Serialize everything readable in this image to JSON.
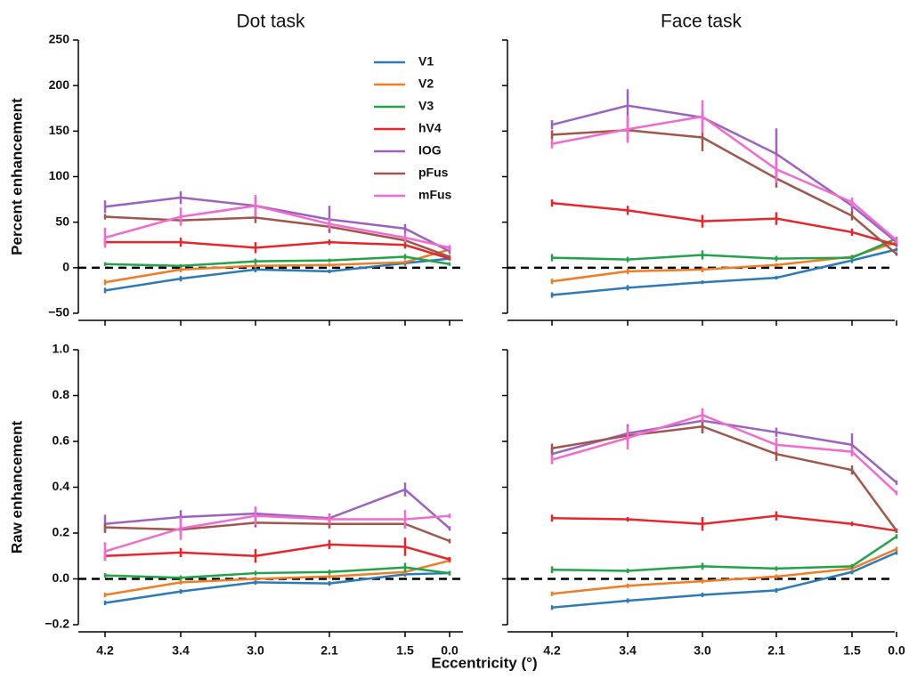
{
  "x_label": "Eccentricity (°)",
  "chart_data": [
    {
      "type": "line",
      "title": "Dot task",
      "y_label": "Percent enhancement",
      "categories": [
        "4.2",
        "3.4",
        "3.0",
        "2.1",
        "1.5",
        "0.0"
      ],
      "xtick_labels": false,
      "ytick_labels": true,
      "ylim": [
        -50,
        250
      ],
      "yticks": [
        {
          "value": -50,
          "label": "−50"
        },
        0,
        50,
        100,
        150,
        200,
        250
      ],
      "zero_line": true,
      "legend": "upper right",
      "series": [
        {
          "name": "V1",
          "color": "#2b7bba",
          "values": [
            -25,
            -12,
            -2,
            -4,
            5,
            10
          ],
          "errors": [
            3,
            3,
            3,
            2,
            3,
            2
          ]
        },
        {
          "name": "V2",
          "color": "#f07c24",
          "values": [
            -16,
            -2,
            2,
            3,
            6,
            20
          ],
          "errors": [
            3,
            3,
            2,
            2,
            2,
            2
          ]
        },
        {
          "name": "V3",
          "color": "#22a34a",
          "values": [
            4,
            2,
            7,
            8,
            12,
            4
          ],
          "errors": [
            2,
            2,
            3,
            2,
            3,
            2
          ]
        },
        {
          "name": "hV4",
          "color": "#e8252a",
          "values": [
            28,
            28,
            22,
            28,
            25,
            10
          ],
          "errors": [
            4,
            5,
            6,
            3,
            4,
            2
          ]
        },
        {
          "name": "IOG",
          "color": "#9d62c0",
          "values": [
            67,
            77,
            68,
            53,
            43,
            18
          ],
          "errors": [
            7,
            7,
            10,
            15,
            5,
            3
          ]
        },
        {
          "name": "pFus",
          "color": "#a0564b",
          "values": [
            56,
            52,
            55,
            45,
            30,
            12
          ],
          "errors": [
            3,
            4,
            6,
            5,
            4,
            2
          ]
        },
        {
          "name": "mFus",
          "color": "#f06ad0",
          "values": [
            33,
            56,
            68,
            48,
            33,
            22
          ],
          "errors": [
            11,
            10,
            12,
            6,
            5,
            3
          ]
        }
      ]
    },
    {
      "type": "line",
      "title": "Face task",
      "categories": [
        "4.2",
        "3.4",
        "3.0",
        "2.1",
        "1.5",
        "0.0"
      ],
      "xtick_labels": false,
      "ytick_labels": false,
      "ylim": [
        -50,
        250
      ],
      "yticks": [
        -50,
        0,
        50,
        100,
        150,
        200,
        250
      ],
      "zero_line": true,
      "series": [
        {
          "name": "V1",
          "color": "#2b7bba",
          "values": [
            -30,
            -22,
            -16,
            -11,
            8,
            20
          ],
          "errors": [
            3,
            3,
            2,
            2,
            3,
            2
          ]
        },
        {
          "name": "V2",
          "color": "#f07c24",
          "values": [
            -15,
            -4,
            -2,
            3,
            12,
            28
          ],
          "errors": [
            3,
            3,
            3,
            2,
            2,
            2
          ]
        },
        {
          "name": "V3",
          "color": "#22a34a",
          "values": [
            11,
            9,
            14,
            10,
            11,
            32
          ],
          "errors": [
            4,
            3,
            5,
            3,
            3,
            2
          ]
        },
        {
          "name": "hV4",
          "color": "#e8252a",
          "values": [
            71,
            63,
            51,
            54,
            39,
            25
          ],
          "errors": [
            4,
            5,
            7,
            7,
            4,
            2
          ]
        },
        {
          "name": "IOG",
          "color": "#9d62c0",
          "values": [
            157,
            178,
            165,
            125,
            68,
            28
          ],
          "errors": [
            5,
            18,
            8,
            28,
            8,
            3
          ]
        },
        {
          "name": "pFus",
          "color": "#a0564b",
          "values": [
            146,
            151,
            143,
            98,
            57,
            15
          ],
          "errors": [
            5,
            12,
            15,
            10,
            5,
            2
          ]
        },
        {
          "name": "mFus",
          "color": "#f06ad0",
          "values": [
            136,
            152,
            166,
            108,
            72,
            30
          ],
          "errors": [
            5,
            15,
            18,
            15,
            5,
            3
          ]
        }
      ]
    },
    {
      "type": "line",
      "y_label": "Raw enhancement",
      "categories": [
        "4.2",
        "3.4",
        "3.0",
        "2.1",
        "1.5",
        "0.0"
      ],
      "xtick_labels": true,
      "ytick_labels": true,
      "ylim": [
        -0.2,
        1.0
      ],
      "yticks": [
        {
          "value": -0.2,
          "label": "−0.2"
        },
        {
          "value": 0,
          "label": "0.0"
        },
        0.2,
        0.4,
        0.6,
        0.8,
        {
          "value": 1.0,
          "label": "1.0"
        }
      ],
      "zero_line": true,
      "series": [
        {
          "name": "V1",
          "color": "#2b7bba",
          "values": [
            -0.105,
            -0.055,
            -0.015,
            -0.02,
            0.02,
            0.025
          ],
          "errors": [
            0.01,
            0.01,
            0.01,
            0.01,
            0.01,
            0.01
          ]
        },
        {
          "name": "V2",
          "color": "#f07c24",
          "values": [
            -0.07,
            -0.015,
            0.0,
            0.01,
            0.03,
            0.08
          ],
          "errors": [
            0.01,
            0.01,
            0.01,
            0.01,
            0.01,
            0.01
          ]
        },
        {
          "name": "V3",
          "color": "#22a34a",
          "values": [
            0.015,
            0.005,
            0.025,
            0.03,
            0.05,
            0.025
          ],
          "errors": [
            0.01,
            0.01,
            0.01,
            0.01,
            0.02,
            0.01
          ]
        },
        {
          "name": "hV4",
          "color": "#e8252a",
          "values": [
            0.1,
            0.115,
            0.1,
            0.15,
            0.14,
            0.085
          ],
          "errors": [
            0.02,
            0.02,
            0.03,
            0.02,
            0.04,
            0.01
          ]
        },
        {
          "name": "IOG",
          "color": "#9d62c0",
          "values": [
            0.24,
            0.27,
            0.285,
            0.265,
            0.39,
            0.22
          ],
          "errors": [
            0.04,
            0.03,
            0.03,
            0.02,
            0.03,
            0.01
          ]
        },
        {
          "name": "pFus",
          "color": "#a0564b",
          "values": [
            0.225,
            0.215,
            0.245,
            0.24,
            0.24,
            0.165
          ],
          "errors": [
            0.02,
            0.02,
            0.02,
            0.02,
            0.02,
            0.01
          ]
        },
        {
          "name": "mFus",
          "color": "#f06ad0",
          "values": [
            0.12,
            0.22,
            0.275,
            0.26,
            0.26,
            0.275
          ],
          "errors": [
            0.04,
            0.05,
            0.04,
            0.02,
            0.04,
            0.01
          ]
        }
      ]
    },
    {
      "type": "line",
      "categories": [
        "4.2",
        "3.4",
        "3.0",
        "2.1",
        "1.5",
        "0.0"
      ],
      "xtick_labels": true,
      "ytick_labels": false,
      "ylim": [
        -0.2,
        1.0
      ],
      "yticks": [
        -0.2,
        0,
        0.2,
        0.4,
        0.6,
        0.8,
        1.0
      ],
      "zero_line": true,
      "series": [
        {
          "name": "V1",
          "color": "#2b7bba",
          "values": [
            -0.125,
            -0.095,
            -0.07,
            -0.05,
            0.03,
            0.115
          ],
          "errors": [
            0.01,
            0.01,
            0.01,
            0.01,
            0.01,
            0.01
          ]
        },
        {
          "name": "V2",
          "color": "#f07c24",
          "values": [
            -0.065,
            -0.03,
            -0.01,
            0.01,
            0.045,
            0.13
          ],
          "errors": [
            0.01,
            0.01,
            0.01,
            0.01,
            0.01,
            0.01
          ]
        },
        {
          "name": "V3",
          "color": "#22a34a",
          "values": [
            0.04,
            0.035,
            0.055,
            0.045,
            0.055,
            0.185
          ],
          "errors": [
            0.015,
            0.01,
            0.015,
            0.01,
            0.01,
            0.01
          ]
        },
        {
          "name": "hV4",
          "color": "#e8252a",
          "values": [
            0.265,
            0.26,
            0.24,
            0.275,
            0.24,
            0.21
          ],
          "errors": [
            0.015,
            0.01,
            0.03,
            0.02,
            0.01,
            0.01
          ]
        },
        {
          "name": "IOG",
          "color": "#9d62c0",
          "values": [
            0.545,
            0.635,
            0.69,
            0.64,
            0.585,
            0.42
          ],
          "errors": [
            0.02,
            0.04,
            0.05,
            0.02,
            0.05,
            0.01
          ]
        },
        {
          "name": "pFus",
          "color": "#a0564b",
          "values": [
            0.57,
            0.625,
            0.665,
            0.545,
            0.475,
            0.21
          ],
          "errors": [
            0.02,
            0.02,
            0.03,
            0.03,
            0.02,
            0.01
          ]
        },
        {
          "name": "mFus",
          "color": "#f06ad0",
          "values": [
            0.52,
            0.615,
            0.715,
            0.585,
            0.555,
            0.375
          ],
          "errors": [
            0.02,
            0.05,
            0.03,
            0.03,
            0.02,
            0.01
          ]
        }
      ]
    }
  ]
}
